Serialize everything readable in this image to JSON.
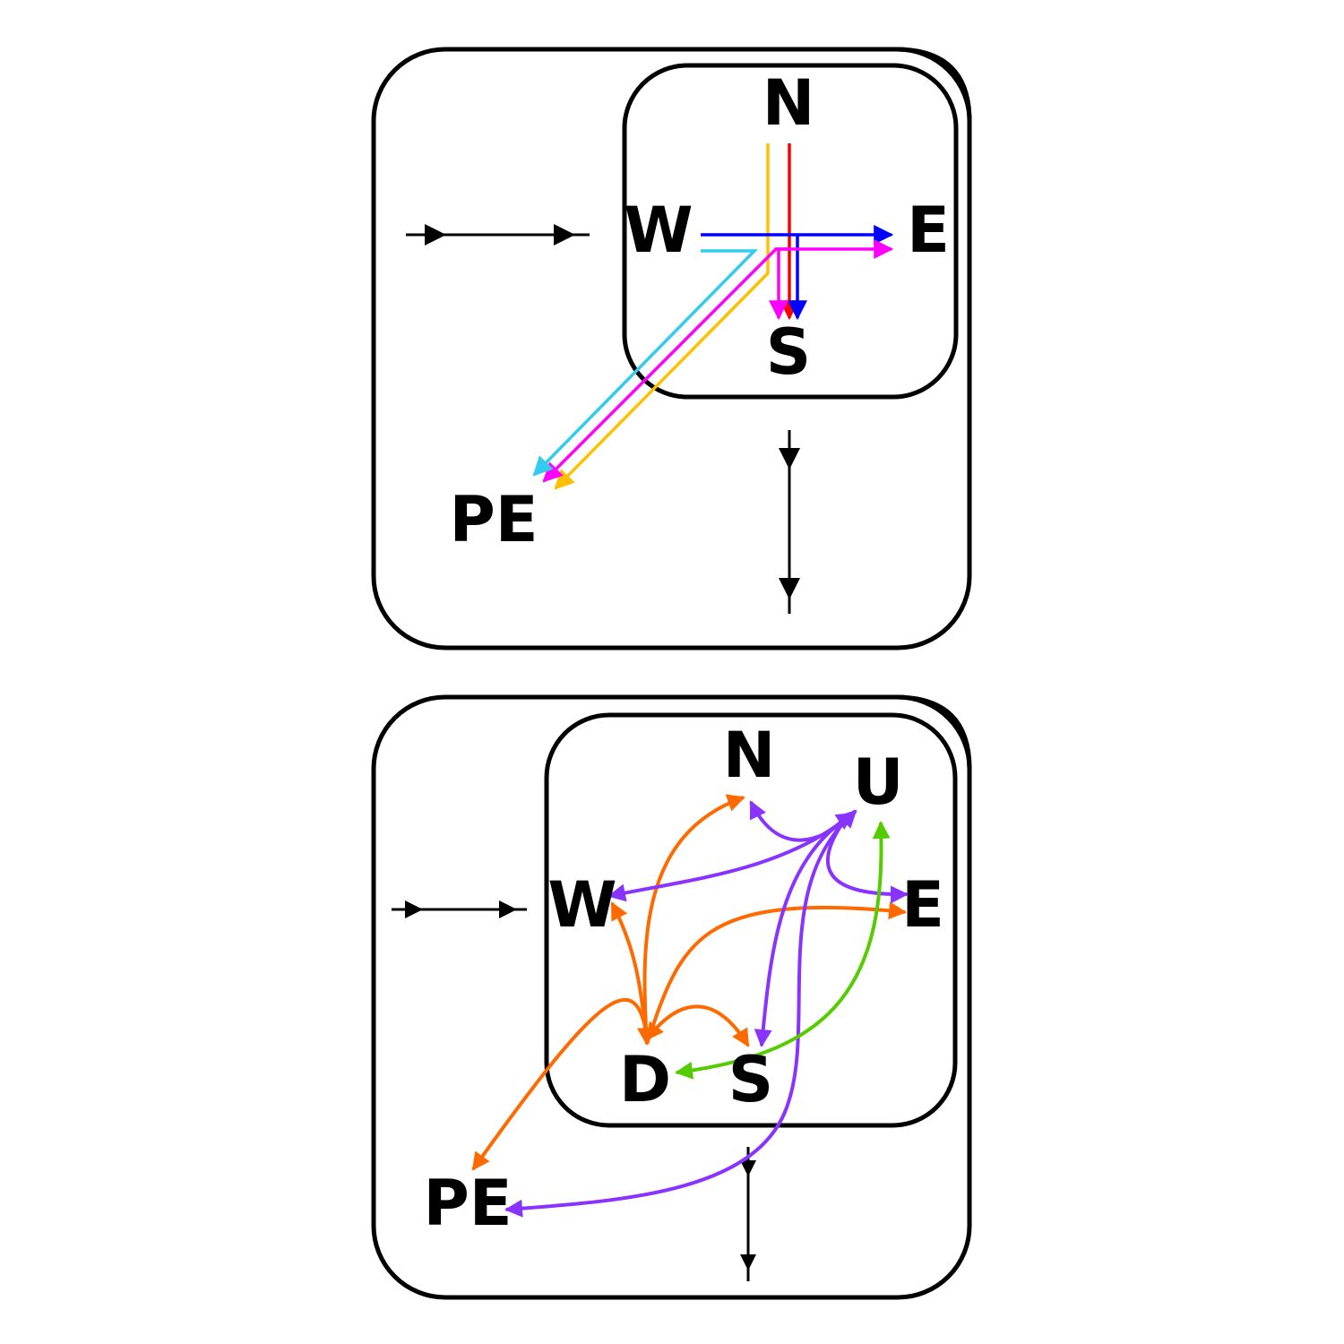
{
  "top_panel": {
    "labels": {
      "north": "N",
      "east": "E",
      "south": "S",
      "west": "W",
      "pe": "PE"
    }
  },
  "bottom_panel": {
    "labels": {
      "north": "N",
      "up": "U",
      "west": "W",
      "east": "E",
      "down": "D",
      "south": "S",
      "pe": "PE"
    }
  },
  "colors": {
    "black": "#000000",
    "red": "#ff0000",
    "yellow": "#ffc000",
    "blue": "#0000ff",
    "magenta": "#ff00ff",
    "cyan": "#33ccee",
    "orange": "#ff6a00",
    "purple": "#8833ff",
    "green": "#55cc00"
  }
}
